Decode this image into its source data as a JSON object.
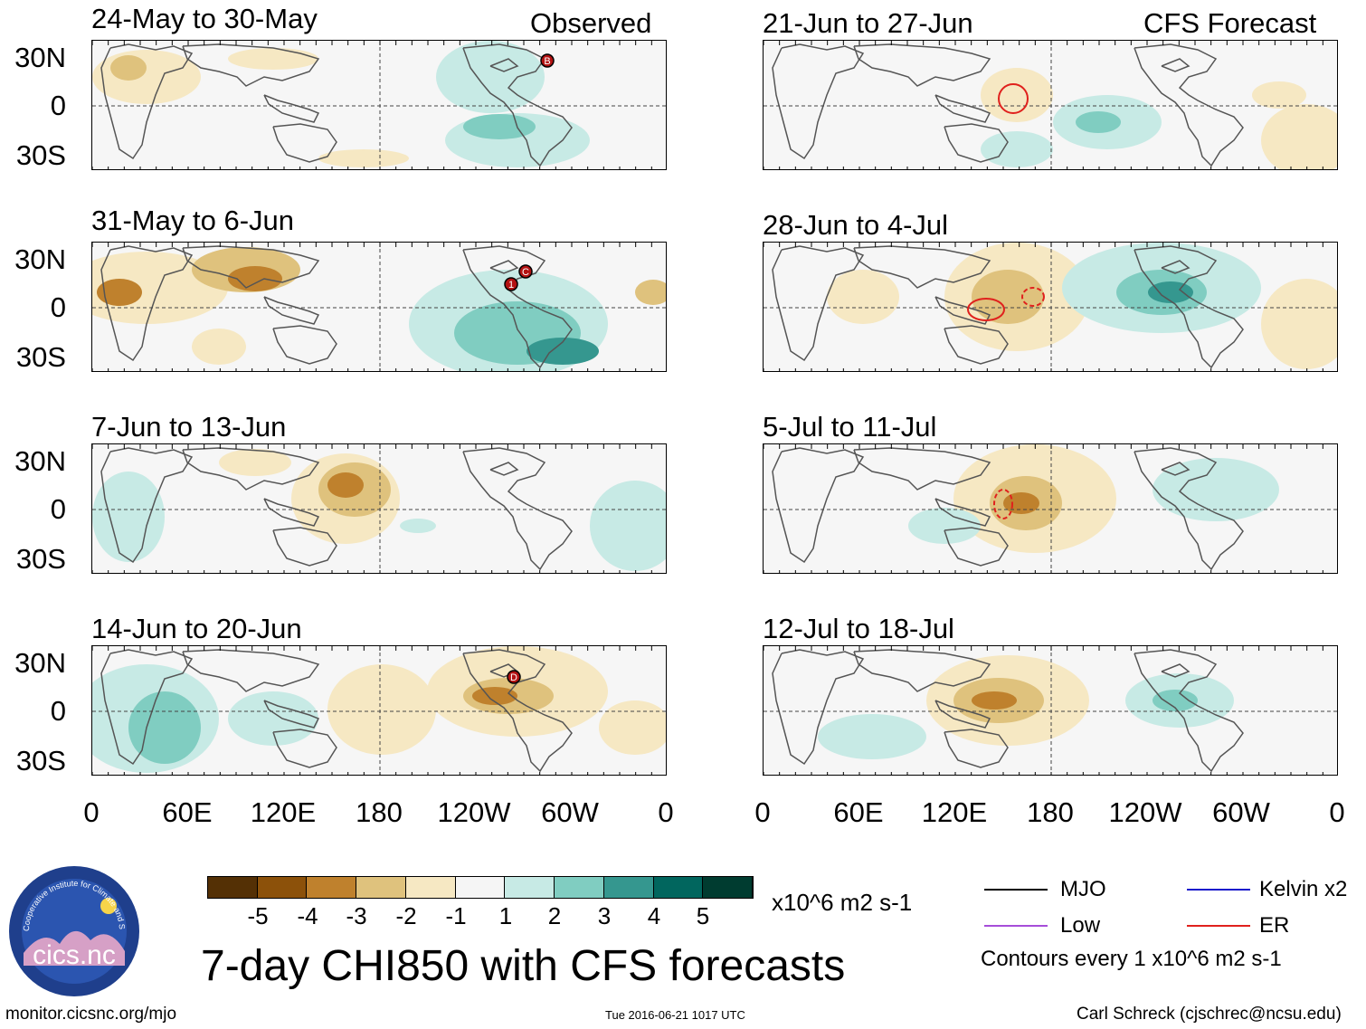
{
  "headers": {
    "observed": "Observed",
    "forecast": "CFS Forecast"
  },
  "lat_labels": [
    "30N",
    "0",
    "30S"
  ],
  "lon_labels": [
    "0",
    "60E",
    "120E",
    "180",
    "120W",
    "60W",
    "0"
  ],
  "observed_panels": [
    {
      "title": "24-May to 30-May",
      "markers": [
        "B"
      ]
    },
    {
      "title": "31-May to 6-Jun",
      "markers": [
        "1",
        "C"
      ]
    },
    {
      "title": "7-Jun to 13-Jun",
      "markers": []
    },
    {
      "title": "14-Jun to 20-Jun",
      "markers": [
        "D"
      ]
    }
  ],
  "forecast_panels": [
    {
      "title": "21-Jun to 27-Jun"
    },
    {
      "title": "28-Jun to 4-Jul"
    },
    {
      "title": "5-Jul to 11-Jul"
    },
    {
      "title": "12-Jul to 18-Jul"
    }
  ],
  "colorbar": {
    "ticks": [
      "-5",
      "-4",
      "-3",
      "-2",
      "-1",
      "1",
      "2",
      "3",
      "4",
      "5"
    ],
    "units": "x10^6 m2 s-1",
    "colors": [
      "#543005",
      "#8c510a",
      "#bf812d",
      "#dfc27d",
      "#f6e8c3",
      "#f5f5f5",
      "#c7eae5",
      "#80cdc1",
      "#35978f",
      "#01665e",
      "#003c30"
    ]
  },
  "legend": {
    "items": [
      {
        "label": "MJO",
        "color": "#000000"
      },
      {
        "label": "Kelvin x2",
        "color": "#1a1acc"
      },
      {
        "label": "Low",
        "color": "#a64dd9"
      },
      {
        "label": "ER",
        "color": "#e0211d"
      }
    ],
    "contours_note": "Contours every 1 x10^6 m2 s-1"
  },
  "main_title": "7-day CHI850 with CFS forecasts",
  "logo_text": "cics.nc",
  "logo_ring_text": "Cooperative Institute for Climate and Satellites",
  "footer": {
    "left": "monitor.cicsnc.org/mjo",
    "center": "Tue 2016-06-21 1017 UTC",
    "right": "Carl Schreck (cjschrec@ncsu.edu)"
  }
}
